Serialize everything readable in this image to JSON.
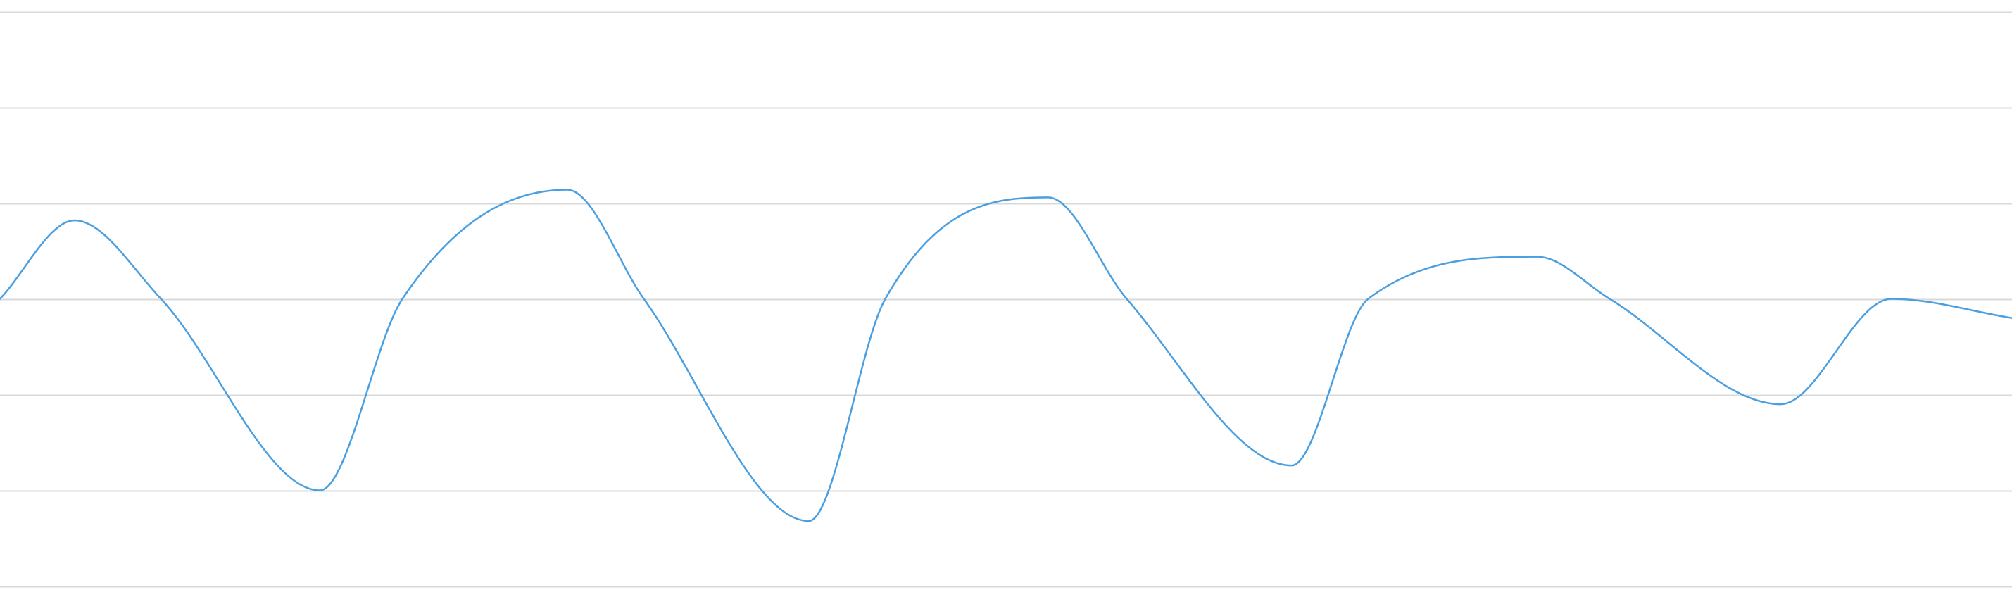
{
  "chart_data": {
    "type": "line",
    "title": "",
    "xlabel": "",
    "ylabel": "",
    "grid": true,
    "legend": "none",
    "xlim": [
      0,
      100
    ],
    "ylim": [
      -1.5,
      1.5
    ],
    "gridlines_y": [
      -1.5,
      -1.0,
      -0.5,
      0.0,
      0.5,
      1.0,
      1.5
    ],
    "series": [
      {
        "color": "#4a9fe0",
        "x": [
          0,
          3.7,
          8,
          15.9,
          20,
          28.2,
          32,
          40.2,
          44,
          52.1,
          56,
          64.2,
          68,
          76.4,
          80,
          88.5,
          94,
          100
        ],
        "y": [
          0.0,
          0.41,
          0.0,
          -1.0,
          0.0,
          0.57,
          0.0,
          -1.16,
          0.0,
          0.53,
          0.0,
          -0.87,
          0.0,
          0.22,
          0.0,
          -0.55,
          0.0,
          -0.1
        ]
      }
    ]
  },
  "colors": {
    "background": "#ffffff",
    "grid": "#d9d9d9",
    "line": "#4a9fe0"
  }
}
